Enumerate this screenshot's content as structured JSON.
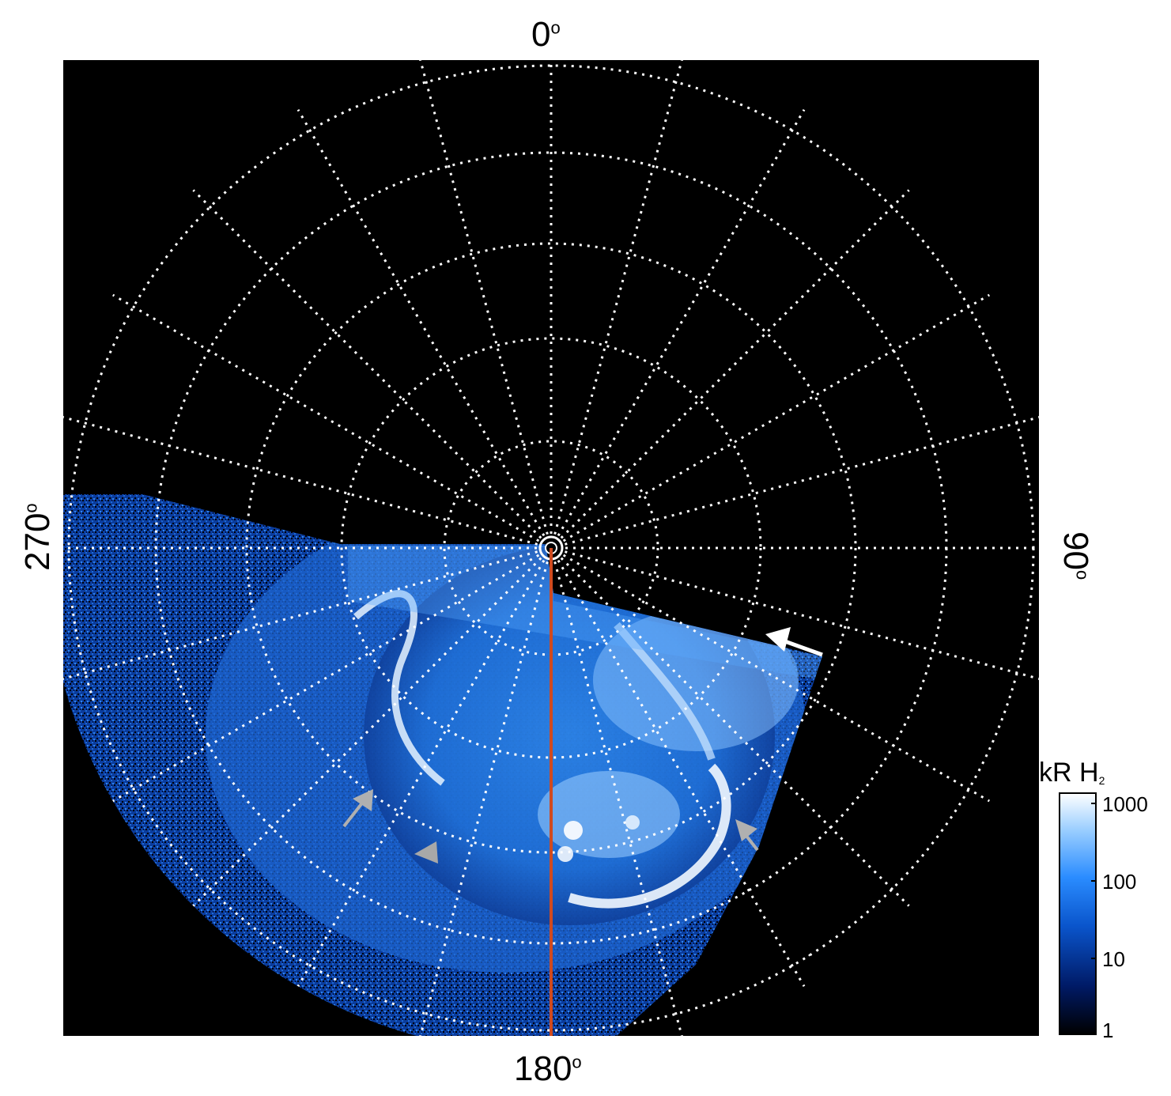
{
  "polar_labels": {
    "top": "0",
    "right": "90",
    "bottom": "180",
    "left": "270",
    "degree_symbol": "o"
  },
  "colorbar": {
    "title_main": "kR H",
    "title_sub": "2",
    "ticks": [
      "1000",
      "100",
      "10",
      "1"
    ],
    "scale": "log",
    "range": [
      1,
      1000
    ],
    "colors": [
      "#000000",
      "#001a66",
      "#0a55cc",
      "#2a8cff",
      "#9ccfff",
      "#ffffff"
    ]
  },
  "image": {
    "background": "#000000",
    "grid_color": "#ffffff",
    "meridian_color": "#d04a1f",
    "arrow_colors": [
      "#ffffff",
      "#b0b0b0"
    ]
  }
}
